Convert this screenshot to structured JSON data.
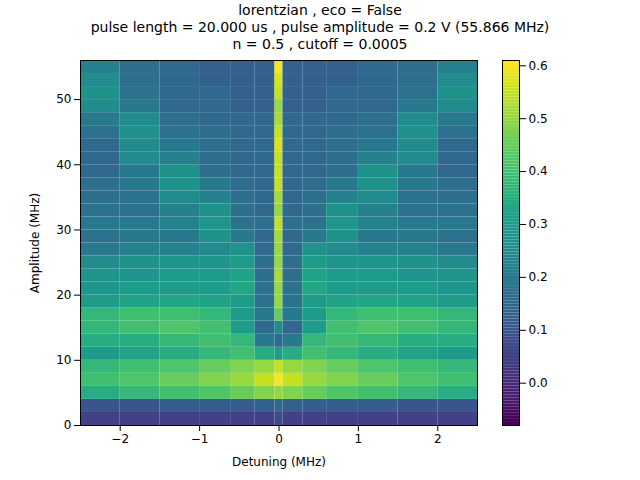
{
  "chart_data": {
    "type": "heatmap",
    "title": "lorentzian , eco = False\npulse length = 20.000 us , pulse amplitude = 0.2 V (55.866 MHz)\nn = 0.5 , cutoff = 0.0005",
    "x_label": "Detuning (MHz)",
    "y_label": "Amplitude (MHz)",
    "xlim": [
      -2.5,
      2.5
    ],
    "ylim": [
      0,
      56
    ],
    "xticks": [
      -2,
      -1,
      0,
      1,
      2
    ],
    "yticks": [
      0,
      10,
      20,
      30,
      40,
      50
    ],
    "color": "viridis",
    "clim": [
      -0.08,
      0.61
    ],
    "cticks": [
      {
        "value": 0,
        "label": "0.0"
      },
      0.1,
      0.2,
      0.3,
      0.4,
      0.5,
      0.6
    ],
    "x_edges": [
      -2.5,
      -2.0,
      -1.5,
      -1.0,
      -0.6,
      -0.3,
      -0.05,
      0.05,
      0.3,
      0.6,
      1.0,
      1.5,
      2.0,
      2.5
    ],
    "y_edges": [
      0,
      2,
      4,
      6,
      8,
      10,
      12,
      14,
      16,
      18,
      20,
      22,
      24,
      26,
      28,
      30,
      32,
      34,
      36,
      38,
      40,
      42,
      44,
      46,
      48,
      50,
      52,
      54,
      56
    ],
    "values": [
      [
        0.05,
        0.05,
        0.05,
        0.05,
        0.05,
        0.05,
        0.08,
        0.05,
        0.05,
        0.05,
        0.05,
        0.05,
        0.05
      ],
      [
        0.1,
        0.1,
        0.12,
        0.12,
        0.12,
        0.13,
        0.15,
        0.13,
        0.12,
        0.12,
        0.12,
        0.1,
        0.1
      ],
      [
        0.35,
        0.38,
        0.4,
        0.42,
        0.45,
        0.48,
        0.5,
        0.48,
        0.45,
        0.42,
        0.4,
        0.38,
        0.35
      ],
      [
        0.4,
        0.42,
        0.45,
        0.48,
        0.5,
        0.55,
        0.6,
        0.55,
        0.5,
        0.48,
        0.45,
        0.42,
        0.4
      ],
      [
        0.38,
        0.4,
        0.42,
        0.45,
        0.48,
        0.5,
        0.55,
        0.5,
        0.48,
        0.45,
        0.42,
        0.4,
        0.38
      ],
      [
        0.3,
        0.32,
        0.35,
        0.38,
        0.4,
        0.35,
        0.3,
        0.35,
        0.4,
        0.38,
        0.35,
        0.32,
        0.3
      ],
      [
        0.35,
        0.35,
        0.38,
        0.4,
        0.38,
        0.2,
        0.15,
        0.2,
        0.38,
        0.4,
        0.38,
        0.35,
        0.35
      ],
      [
        0.38,
        0.4,
        0.42,
        0.4,
        0.3,
        0.15,
        0.25,
        0.15,
        0.3,
        0.4,
        0.42,
        0.4,
        0.38
      ],
      [
        0.38,
        0.4,
        0.4,
        0.38,
        0.3,
        0.2,
        0.45,
        0.2,
        0.3,
        0.38,
        0.4,
        0.4,
        0.38
      ],
      [
        0.3,
        0.32,
        0.33,
        0.32,
        0.3,
        0.18,
        0.5,
        0.18,
        0.3,
        0.32,
        0.33,
        0.32,
        0.3
      ],
      [
        0.28,
        0.3,
        0.3,
        0.3,
        0.33,
        0.18,
        0.5,
        0.18,
        0.33,
        0.3,
        0.3,
        0.3,
        0.28
      ],
      [
        0.28,
        0.28,
        0.3,
        0.3,
        0.32,
        0.17,
        0.52,
        0.17,
        0.32,
        0.3,
        0.3,
        0.28,
        0.28
      ],
      [
        0.25,
        0.27,
        0.28,
        0.28,
        0.3,
        0.17,
        0.5,
        0.17,
        0.3,
        0.28,
        0.28,
        0.27,
        0.25
      ],
      [
        0.2,
        0.22,
        0.22,
        0.25,
        0.27,
        0.15,
        0.5,
        0.15,
        0.27,
        0.25,
        0.22,
        0.22,
        0.2
      ],
      [
        0.18,
        0.2,
        0.2,
        0.27,
        0.2,
        0.15,
        0.52,
        0.15,
        0.2,
        0.27,
        0.2,
        0.2,
        0.18
      ],
      [
        0.2,
        0.2,
        0.22,
        0.28,
        0.18,
        0.17,
        0.55,
        0.17,
        0.18,
        0.28,
        0.22,
        0.2,
        0.2
      ],
      [
        0.18,
        0.18,
        0.22,
        0.27,
        0.17,
        0.15,
        0.5,
        0.15,
        0.17,
        0.27,
        0.22,
        0.18,
        0.18
      ],
      [
        0.17,
        0.18,
        0.25,
        0.22,
        0.17,
        0.15,
        0.52,
        0.15,
        0.17,
        0.22,
        0.25,
        0.18,
        0.17
      ],
      [
        0.17,
        0.2,
        0.27,
        0.2,
        0.16,
        0.15,
        0.55,
        0.15,
        0.16,
        0.2,
        0.27,
        0.2,
        0.17
      ],
      [
        0.15,
        0.2,
        0.27,
        0.17,
        0.15,
        0.15,
        0.55,
        0.15,
        0.15,
        0.17,
        0.27,
        0.2,
        0.15
      ],
      [
        0.15,
        0.25,
        0.22,
        0.17,
        0.15,
        0.15,
        0.55,
        0.15,
        0.15,
        0.17,
        0.22,
        0.25,
        0.15
      ],
      [
        0.15,
        0.25,
        0.2,
        0.17,
        0.15,
        0.15,
        0.57,
        0.15,
        0.15,
        0.17,
        0.2,
        0.25,
        0.15
      ],
      [
        0.18,
        0.27,
        0.18,
        0.17,
        0.15,
        0.15,
        0.55,
        0.15,
        0.15,
        0.17,
        0.18,
        0.27,
        0.18
      ],
      [
        0.2,
        0.25,
        0.17,
        0.15,
        0.15,
        0.15,
        0.52,
        0.15,
        0.15,
        0.15,
        0.17,
        0.25,
        0.2
      ],
      [
        0.25,
        0.2,
        0.15,
        0.15,
        0.13,
        0.13,
        0.5,
        0.13,
        0.13,
        0.15,
        0.15,
        0.2,
        0.25
      ],
      [
        0.27,
        0.18,
        0.15,
        0.15,
        0.13,
        0.13,
        0.55,
        0.13,
        0.13,
        0.15,
        0.15,
        0.18,
        0.27
      ],
      [
        0.25,
        0.17,
        0.15,
        0.13,
        0.13,
        0.13,
        0.57,
        0.13,
        0.13,
        0.13,
        0.15,
        0.17,
        0.25
      ],
      [
        0.22,
        0.17,
        0.15,
        0.13,
        0.13,
        0.13,
        0.6,
        0.13,
        0.13,
        0.13,
        0.15,
        0.17,
        0.22
      ]
    ]
  }
}
